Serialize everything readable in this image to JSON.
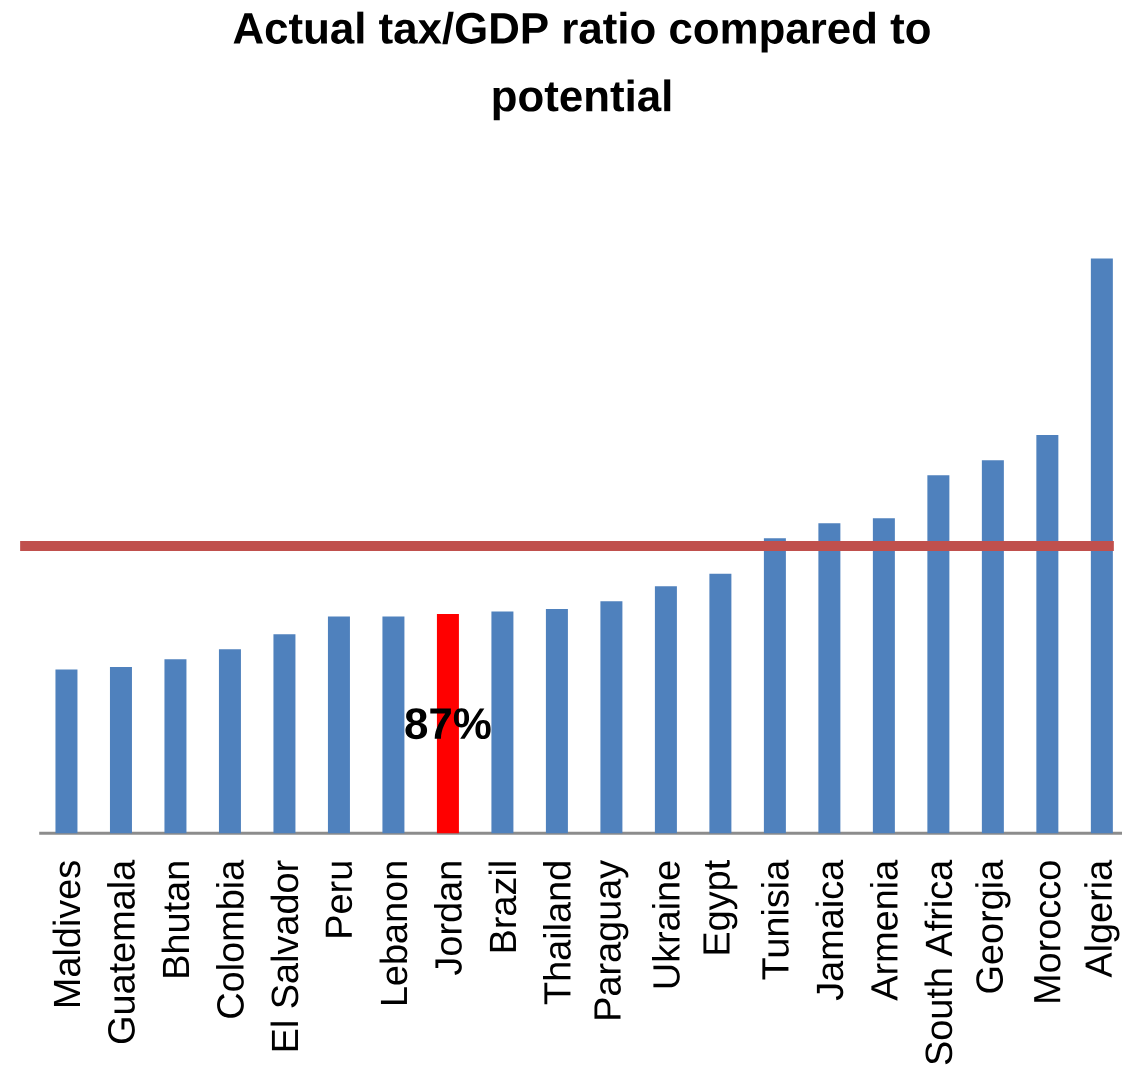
{
  "chart_data": {
    "type": "bar",
    "title": "Actual tax/GDP ratio compared to potential",
    "categories": [
      "Maldives",
      "Guatemala",
      "Bhutan",
      "Colombia",
      "El Salvador",
      "Peru",
      "Lebanon",
      "Jordan",
      "Brazil",
      "Thailand",
      "Paraguay",
      "Ukraine",
      "Egypt",
      "Tunisia",
      "Jamaica",
      "Armenia",
      "South Africa",
      "Georgia",
      "Morocco",
      "Algeria"
    ],
    "values": [
      65,
      66,
      69,
      73,
      79,
      86,
      86,
      87,
      88,
      89,
      92,
      98,
      103,
      117,
      123,
      125,
      142,
      148,
      158,
      228
    ],
    "colors": [
      "#4f81bd",
      "#4f81bd",
      "#4f81bd",
      "#4f81bd",
      "#4f81bd",
      "#4f81bd",
      "#4f81bd",
      "#ff0000",
      "#4f81bd",
      "#4f81bd",
      "#4f81bd",
      "#4f81bd",
      "#4f81bd",
      "#4f81bd",
      "#4f81bd",
      "#4f81bd",
      "#4f81bd",
      "#4f81bd",
      "#4f81bd",
      "#4f81bd"
    ],
    "value_labels": [
      null,
      null,
      null,
      null,
      null,
      null,
      null,
      "87%",
      null,
      null,
      null,
      null,
      null,
      null,
      null,
      null,
      null,
      null,
      null,
      null
    ],
    "ylim": [
      0,
      230
    ],
    "tick_labels": "x",
    "ref_lines": [
      {
        "axis": "y",
        "value": 114,
        "color": "#c0504d"
      }
    ]
  }
}
